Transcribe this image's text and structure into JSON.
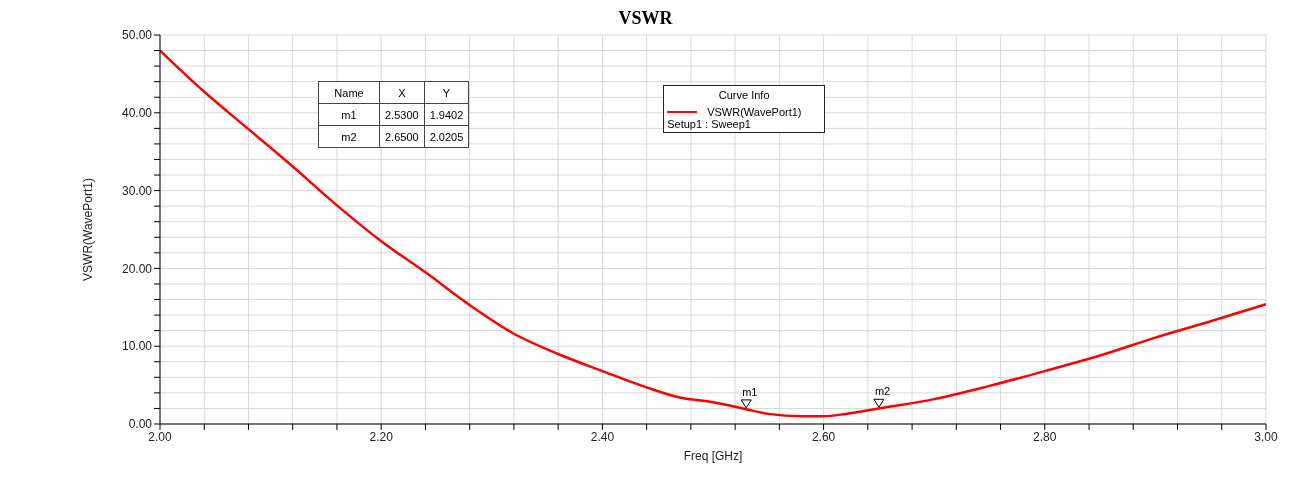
{
  "chart_data": {
    "type": "line",
    "title": "VSWR",
    "xlabel": "Freq [GHz]",
    "ylabel": "VSWR(WavePort1)",
    "legend_title": "Curve Info",
    "legend": "top",
    "grid": true,
    "marker": "none",
    "line_style": "solid",
    "x": [
      2.0,
      2.04,
      2.08,
      2.12,
      2.16,
      2.2,
      2.24,
      2.28,
      2.32,
      2.36,
      2.4,
      2.44,
      2.47,
      2.5,
      2.53,
      2.55,
      2.58,
      2.6,
      2.62,
      2.65,
      2.7,
      2.75,
      2.8,
      2.85,
      2.9,
      2.95,
      3.0
    ],
    "series": [
      {
        "name": "VSWR(WavePort1)",
        "color": "#ff0000",
        "values": [
          48.0,
          42.7,
          37.9,
          33.1,
          28.1,
          23.5,
          19.5,
          15.3,
          11.6,
          9.0,
          6.8,
          4.7,
          3.4,
          2.8,
          1.9,
          1.3,
          1.0,
          1.0,
          1.3,
          2.0,
          3.2,
          4.9,
          6.8,
          8.8,
          11.1,
          13.2,
          15.4
        ]
      }
    ],
    "xlim": [
      2.0,
      3.0
    ],
    "xticks": [
      {
        "value": 2.0,
        "label": "2.00"
      },
      {
        "value": 2.04,
        "label": null
      },
      {
        "value": 2.08,
        "label": null
      },
      {
        "value": 2.12,
        "label": null
      },
      {
        "value": 2.16,
        "label": null
      },
      {
        "value": 2.2,
        "label": "2.20"
      },
      {
        "value": 2.24,
        "label": null
      },
      {
        "value": 2.28,
        "label": null
      },
      {
        "value": 2.32,
        "label": null
      },
      {
        "value": 2.36,
        "label": null
      },
      {
        "value": 2.4,
        "label": "2.40"
      },
      {
        "value": 2.44,
        "label": null
      },
      {
        "value": 2.48,
        "label": null
      },
      {
        "value": 2.52,
        "label": null
      },
      {
        "value": 2.56,
        "label": null
      },
      {
        "value": 2.6,
        "label": "2.60"
      },
      {
        "value": 2.64,
        "label": null
      },
      {
        "value": 2.68,
        "label": null
      },
      {
        "value": 2.72,
        "label": null
      },
      {
        "value": 2.76,
        "label": null
      },
      {
        "value": 2.8,
        "label": "2.80"
      },
      {
        "value": 2.84,
        "label": null
      },
      {
        "value": 2.88,
        "label": null
      },
      {
        "value": 2.92,
        "label": null
      },
      {
        "value": 2.96,
        "label": null
      },
      {
        "value": 3.0,
        "label": "3.00"
      }
    ],
    "ylim": [
      0,
      50
    ],
    "yticks": [
      {
        "value": 0,
        "label": "0.00"
      },
      {
        "value": 2,
        "label": null
      },
      {
        "value": 4,
        "label": null
      },
      {
        "value": 6,
        "label": null
      },
      {
        "value": 8,
        "label": null
      },
      {
        "value": 10,
        "label": "10.00"
      },
      {
        "value": 12,
        "label": null
      },
      {
        "value": 14,
        "label": null
      },
      {
        "value": 16,
        "label": null
      },
      {
        "value": 18,
        "label": null
      },
      {
        "value": 20,
        "label": "20.00"
      },
      {
        "value": 22,
        "label": null
      },
      {
        "value": 24,
        "label": null
      },
      {
        "value": 26,
        "label": null
      },
      {
        "value": 28,
        "label": null
      },
      {
        "value": 30,
        "label": "30.00"
      },
      {
        "value": 32,
        "label": null
      },
      {
        "value": 34,
        "label": null
      },
      {
        "value": 36,
        "label": null
      },
      {
        "value": 38,
        "label": null
      },
      {
        "value": 40,
        "label": "40.00"
      },
      {
        "value": 42,
        "label": null
      },
      {
        "value": 44,
        "label": null
      },
      {
        "value": 46,
        "label": null
      },
      {
        "value": 48,
        "label": null
      },
      {
        "value": 50,
        "label": "50.00"
      }
    ],
    "annotations": [
      {
        "text": "m1",
        "x": 2.53,
        "y": 1.9402
      },
      {
        "text": "m2",
        "x": 2.65,
        "y": 2.0205
      },
      "Name",
      "X",
      "Y",
      "m1",
      "2.5300",
      "1.9402",
      "m2",
      "2.6500",
      "2.0205",
      "Setup1 : Sweep1"
    ]
  }
}
